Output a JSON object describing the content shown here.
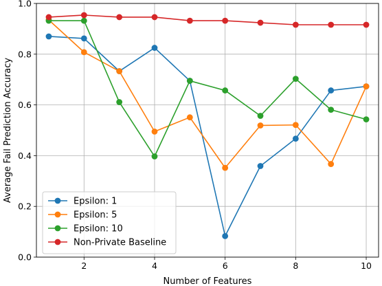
{
  "chart_data": {
    "type": "line",
    "title": "",
    "xlabel": "Number of Features",
    "ylabel": "Average Fail Prediction Accuracy",
    "xlim": [
      0.65,
      10.35
    ],
    "ylim": [
      0.0,
      1.0
    ],
    "x_ticks": [
      2,
      4,
      6,
      8,
      10
    ],
    "x_tick_labels": [
      "2",
      "4",
      "6",
      "8",
      "10"
    ],
    "y_ticks": [
      0.0,
      0.2,
      0.4,
      0.6,
      0.8,
      1.0
    ],
    "y_tick_labels": [
      "0.0",
      "0.2",
      "0.4",
      "0.6",
      "0.8",
      "1.0"
    ],
    "grid": true,
    "legend_position": "lower-left",
    "x": [
      1,
      2,
      3,
      4,
      5,
      6,
      7,
      8,
      9,
      10
    ],
    "series": [
      {
        "name": "Epsilon: 1",
        "color": "#1f77b4",
        "values": [
          0.87,
          0.862,
          0.733,
          0.825,
          0.695,
          0.083,
          0.359,
          0.467,
          0.657,
          0.673
        ]
      },
      {
        "name": "Epsilon: 5",
        "color": "#ff7f0e",
        "values": [
          0.935,
          0.808,
          0.733,
          0.495,
          0.551,
          0.352,
          0.519,
          0.521,
          0.367,
          0.673
        ]
      },
      {
        "name": "Epsilon: 10",
        "color": "#2ca02c",
        "values": [
          0.932,
          0.932,
          0.611,
          0.397,
          0.695,
          0.657,
          0.557,
          0.703,
          0.581,
          0.543
        ]
      },
      {
        "name": "Non-Private Baseline",
        "color": "#d62728",
        "values": [
          0.946,
          0.954,
          0.946,
          0.946,
          0.932,
          0.932,
          0.924,
          0.916,
          0.916,
          0.916
        ]
      }
    ]
  }
}
